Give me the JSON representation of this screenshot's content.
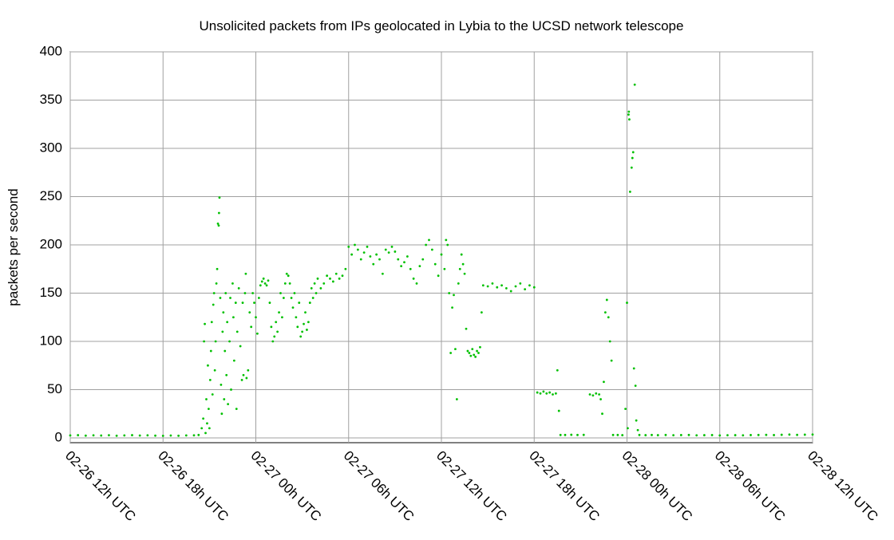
{
  "chart_data": {
    "type": "scatter",
    "title": "Unsolicited packets from IPs geolocated in Lybia to the UCSD network telescope",
    "y_label": "packets per second",
    "color": "#00c000",
    "grid": true,
    "xlim": [
      0,
      48
    ],
    "xticks": [
      {
        "value": 0,
        "label": "02-26 12h UTC"
      },
      {
        "value": 6,
        "label": "02-26 18h UTC"
      },
      {
        "value": 12,
        "label": "02-27 00h UTC"
      },
      {
        "value": 18,
        "label": "02-27 06h UTC"
      },
      {
        "value": 24,
        "label": "02-27 12h UTC"
      },
      {
        "value": 30,
        "label": "02-27 18h UTC"
      },
      {
        "value": 36,
        "label": "02-28 00h UTC"
      },
      {
        "value": 42,
        "label": "02-28 06h UTC"
      },
      {
        "value": 48,
        "label": "02-28 12h UTC"
      }
    ],
    "ylim": [
      -5,
      400
    ],
    "yticks": [
      0,
      50,
      100,
      150,
      200,
      250,
      300,
      350,
      400
    ],
    "x": [
      0,
      0.5,
      1,
      1.5,
      2,
      2.5,
      3,
      3.5,
      4,
      4.5,
      5,
      5.5,
      6,
      6.5,
      7,
      7.5,
      8,
      8.3,
      8.5,
      8.6,
      8.65,
      8.7,
      8.75,
      8.8,
      8.85,
      8.9,
      8.95,
      9.0,
      9.05,
      9.1,
      9.15,
      9.2,
      9.25,
      9.3,
      9.35,
      9.4,
      9.45,
      9.5,
      9.55,
      9.6,
      9.62,
      9.65,
      9.7,
      9.75,
      9.8,
      9.85,
      9.9,
      9.95,
      10.0,
      10.05,
      10.1,
      10.15,
      10.2,
      10.3,
      10.35,
      10.4,
      10.5,
      10.55,
      10.6,
      10.7,
      10.75,
      10.8,
      10.9,
      11.0,
      11.1,
      11.15,
      11.2,
      11.3,
      11.35,
      11.4,
      11.5,
      11.6,
      11.7,
      11.8,
      11.9,
      12.0,
      12.1,
      12.2,
      12.3,
      12.4,
      12.5,
      12.6,
      12.7,
      12.8,
      12.9,
      13.0,
      13.1,
      13.2,
      13.3,
      13.4,
      13.5,
      13.6,
      13.7,
      13.8,
      13.9,
      14.0,
      14.1,
      14.2,
      14.3,
      14.4,
      14.5,
      14.6,
      14.7,
      14.8,
      14.9,
      15.0,
      15.1,
      15.2,
      15.3,
      15.4,
      15.5,
      15.6,
      15.7,
      15.8,
      15.9,
      16.0,
      16.2,
      16.4,
      16.6,
      16.8,
      17.0,
      17.2,
      17.4,
      17.6,
      17.8,
      18.0,
      18.2,
      18.4,
      18.6,
      18.8,
      19.0,
      19.2,
      19.4,
      19.6,
      19.8,
      20.0,
      20.2,
      20.4,
      20.6,
      20.8,
      21.0,
      21.2,
      21.4,
      21.6,
      21.8,
      22.0,
      22.2,
      22.4,
      22.6,
      22.8,
      23.0,
      23.2,
      23.4,
      23.6,
      23.8,
      24.0,
      24.2,
      24.3,
      24.4,
      24.5,
      24.6,
      24.7,
      24.8,
      24.9,
      25.0,
      25.1,
      25.2,
      25.3,
      25.4,
      25.5,
      25.6,
      25.7,
      25.8,
      25.9,
      26.0,
      26.1,
      26.2,
      26.3,
      26.4,
      26.5,
      26.6,
      26.7,
      27.0,
      27.3,
      27.6,
      27.9,
      28.2,
      28.5,
      28.8,
      29.1,
      29.4,
      29.7,
      30.0,
      30.2,
      30.4,
      30.6,
      30.8,
      31.0,
      31.2,
      31.4,
      31.5,
      31.6,
      31.7,
      32.0,
      32.4,
      32.8,
      33.2,
      33.6,
      33.8,
      34.0,
      34.2,
      34.3,
      34.4,
      34.5,
      34.6,
      34.7,
      34.8,
      34.9,
      35.0,
      35.1,
      35.4,
      35.7,
      35.9,
      36.0,
      36.05,
      36.1,
      36.12,
      36.15,
      36.2,
      36.3,
      36.35,
      36.4,
      36.45,
      36.5,
      36.55,
      36.6,
      36.7,
      36.8,
      37.2,
      37.6,
      38.0,
      38.5,
      39,
      39.5,
      40,
      40.5,
      41,
      41.5,
      42,
      42.5,
      43,
      43.5,
      44,
      44.5,
      45,
      45.5,
      46,
      46.5,
      47,
      47.5,
      48
    ],
    "values": [
      2.5,
      2.8,
      2.3,
      2.6,
      2.4,
      2.7,
      2.2,
      2.5,
      2.8,
      2.4,
      2.6,
      2.3,
      2.1,
      2.4,
      2.2,
      2.5,
      2.6,
      3,
      10,
      20,
      100,
      118,
      5,
      40,
      15,
      75,
      30,
      10,
      60,
      90,
      120,
      45,
      138,
      150,
      70,
      100,
      160,
      175,
      222,
      220,
      233,
      249,
      145,
      55,
      25,
      110,
      130,
      40,
      90,
      150,
      65,
      120,
      35,
      100,
      145,
      50,
      160,
      125,
      80,
      140,
      30,
      110,
      155,
      95,
      60,
      140,
      65,
      150,
      170,
      62,
      70,
      130,
      115,
      150,
      140,
      125,
      108,
      145,
      158,
      162,
      165,
      160,
      158,
      163,
      140,
      115,
      100,
      105,
      120,
      110,
      130,
      150,
      125,
      145,
      160,
      170,
      168,
      160,
      145,
      135,
      150,
      125,
      115,
      140,
      105,
      110,
      118,
      130,
      112,
      120,
      140,
      155,
      145,
      160,
      150,
      165,
      155,
      160,
      168,
      165,
      162,
      170,
      165,
      168,
      175,
      198,
      190,
      200,
      195,
      185,
      192,
      198,
      188,
      180,
      190,
      185,
      170,
      195,
      192,
      198,
      193,
      185,
      178,
      182,
      188,
      175,
      165,
      160,
      178,
      185,
      200,
      205,
      195,
      180,
      168,
      190,
      175,
      205,
      200,
      150,
      88,
      135,
      148,
      92,
      40,
      160,
      175,
      190,
      180,
      170,
      113,
      90,
      88,
      85,
      92,
      86,
      84,
      90,
      88,
      94,
      130,
      158,
      157,
      160,
      156,
      158,
      155,
      152,
      157,
      160,
      154,
      158,
      156,
      47,
      46,
      48,
      46,
      47,
      45,
      46,
      70,
      28,
      3,
      3,
      3.2,
      3,
      3.1,
      45,
      44,
      46,
      45,
      40,
      25,
      58,
      130,
      143,
      125,
      100,
      80,
      3,
      3,
      2.8,
      30,
      140,
      10,
      335,
      338,
      330,
      255,
      280,
      290,
      296,
      72,
      366,
      54,
      18,
      8,
      3,
      2.8,
      3,
      2.8,
      3,
      2.7,
      2.9,
      3,
      2.6,
      2.8,
      2.9,
      2.5,
      2.7,
      2.8,
      2.6,
      2.9,
      3,
      3.1,
      2.9,
      3.2,
      3.4,
      3.1,
      3.3,
      3.5
    ]
  }
}
